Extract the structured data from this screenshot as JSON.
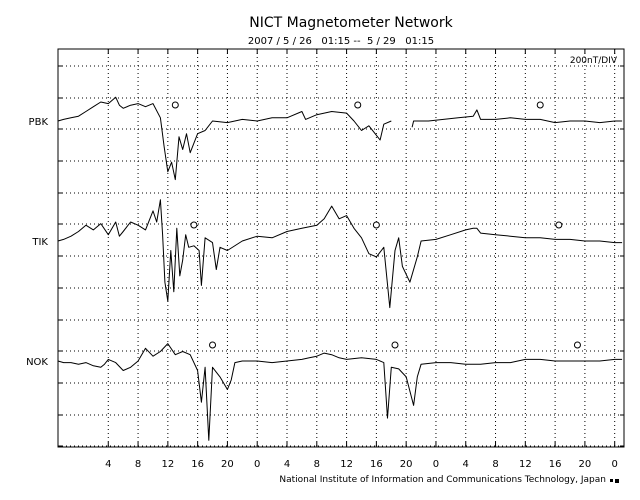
{
  "chart_data": {
    "type": "line",
    "title": "NICT Magnetometer Network",
    "subtitle": "2007 / 5 / 26   01:15 --  5 / 29   01:15",
    "scale_label": "200nT/DIV",
    "credit": "National Institute of Information and Communications Technology, Japan",
    "x_tick_labels": [
      "4",
      "8",
      "12",
      "16",
      "20",
      "0",
      "4",
      "8",
      "12",
      "16",
      "20",
      "0",
      "4",
      "8",
      "12",
      "16",
      "20",
      "0"
    ],
    "x_tick_hours": [
      4,
      8,
      12,
      16,
      20,
      24,
      28,
      32,
      36,
      40,
      44,
      48,
      52,
      56,
      60,
      64,
      68,
      72
    ],
    "x_range_hours": [
      -2.75,
      73.25
    ],
    "grid": true,
    "stations": [
      {
        "name": "PBK",
        "circle_markers_hours": [
          13.0,
          37.5,
          62.0
        ],
        "values": [
          [
            -2.75,
            0
          ],
          [
            -2,
            0.05
          ],
          [
            -1,
            0.1
          ],
          [
            0,
            0.15
          ],
          [
            1,
            0.3
          ],
          [
            2,
            0.45
          ],
          [
            3,
            0.6
          ],
          [
            4,
            0.55
          ],
          [
            5,
            0.75
          ],
          [
            5.5,
            0.5
          ],
          [
            6,
            0.4
          ],
          [
            7,
            0.5
          ],
          [
            8,
            0.55
          ],
          [
            9,
            0.45
          ],
          [
            10,
            0.55
          ],
          [
            11,
            0.1
          ],
          [
            11.5,
            -0.8
          ],
          [
            12,
            -1.6
          ],
          [
            12.5,
            -1.3
          ],
          [
            13,
            -1.85
          ],
          [
            13.5,
            -0.5
          ],
          [
            14,
            -0.9
          ],
          [
            14.5,
            -0.4
          ],
          [
            15,
            -1.0
          ],
          [
            16,
            -0.4
          ],
          [
            17,
            -0.3
          ],
          [
            18,
            0.0
          ],
          [
            20,
            -0.05
          ],
          [
            22,
            0.05
          ],
          [
            24,
            0.0
          ],
          [
            26,
            0.1
          ],
          [
            28,
            0.1
          ],
          [
            30,
            0.3
          ],
          [
            30.5,
            0.05
          ],
          [
            32,
            0.2
          ],
          [
            34,
            0.3
          ],
          [
            36,
            0.25
          ],
          [
            37,
            0.0
          ],
          [
            38,
            -0.3
          ],
          [
            39,
            -0.15
          ],
          [
            40,
            -0.45
          ],
          [
            40.5,
            -0.6
          ],
          [
            41,
            -0.1
          ],
          [
            42,
            0.0
          ],
          [
            42.3,
            null
          ],
          [
            44.5,
            null
          ],
          [
            44.8,
            -0.2
          ],
          [
            45,
            0.0
          ],
          [
            47,
            0.0
          ],
          [
            49,
            0.05
          ],
          [
            51,
            0.1
          ],
          [
            53,
            0.15
          ],
          [
            53.5,
            0.35
          ],
          [
            54,
            0.05
          ],
          [
            56,
            0.05
          ],
          [
            58,
            0.1
          ],
          [
            60,
            0.05
          ],
          [
            62,
            0.05
          ],
          [
            64,
            -0.05
          ],
          [
            66,
            0.0
          ],
          [
            68,
            0.0
          ],
          [
            70,
            -0.05
          ],
          [
            72,
            0.0
          ],
          [
            73,
            0.0
          ]
        ]
      },
      {
        "name": "TIK",
        "circle_markers_hours": [
          15.5,
          40.0,
          64.5
        ],
        "values": [
          [
            -2.75,
            0
          ],
          [
            -2,
            0.05
          ],
          [
            -1,
            0.15
          ],
          [
            0,
            0.3
          ],
          [
            1,
            0.5
          ],
          [
            2,
            0.35
          ],
          [
            3,
            0.55
          ],
          [
            4,
            0.2
          ],
          [
            5,
            0.6
          ],
          [
            5.5,
            0.15
          ],
          [
            6,
            0.3
          ],
          [
            7,
            0.6
          ],
          [
            8,
            0.5
          ],
          [
            9,
            0.35
          ],
          [
            10,
            0.95
          ],
          [
            10.5,
            0.6
          ],
          [
            11,
            1.3
          ],
          [
            11.3,
            0.2
          ],
          [
            11.6,
            -1.3
          ],
          [
            12,
            -1.9
          ],
          [
            12.4,
            -0.3
          ],
          [
            12.8,
            -1.6
          ],
          [
            13.2,
            0.4
          ],
          [
            13.6,
            -1.1
          ],
          [
            14,
            -0.6
          ],
          [
            14.4,
            0.2
          ],
          [
            14.8,
            -0.2
          ],
          [
            15.5,
            -0.15
          ],
          [
            16.2,
            -0.3
          ],
          [
            16.5,
            -1.4
          ],
          [
            17,
            0.1
          ],
          [
            18,
            -0.05
          ],
          [
            18.5,
            -0.9
          ],
          [
            19,
            -0.2
          ],
          [
            20,
            -0.3
          ],
          [
            22,
            0.0
          ],
          [
            24,
            0.15
          ],
          [
            26,
            0.1
          ],
          [
            28,
            0.3
          ],
          [
            30,
            0.4
          ],
          [
            32,
            0.5
          ],
          [
            33,
            0.7
          ],
          [
            34,
            1.1
          ],
          [
            35,
            0.7
          ],
          [
            36,
            0.8
          ],
          [
            37,
            0.4
          ],
          [
            38,
            0.1
          ],
          [
            39,
            -0.4
          ],
          [
            40,
            -0.5
          ],
          [
            41,
            -0.2
          ],
          [
            41.8,
            -2.1
          ],
          [
            42.5,
            -0.3
          ],
          [
            43,
            0.1
          ],
          [
            43.5,
            -0.8
          ],
          [
            44.5,
            -1.3
          ],
          [
            45.5,
            -0.5
          ],
          [
            46,
            0.0
          ],
          [
            48,
            0.05
          ],
          [
            50,
            0.2
          ],
          [
            52,
            0.35
          ],
          [
            53,
            0.4
          ],
          [
            53.5,
            0.4
          ],
          [
            54,
            0.25
          ],
          [
            56,
            0.2
          ],
          [
            58,
            0.15
          ],
          [
            60,
            0.1
          ],
          [
            62,
            0.1
          ],
          [
            64,
            0.05
          ],
          [
            66,
            0.05
          ],
          [
            68,
            0.0
          ],
          [
            70,
            0.0
          ],
          [
            72,
            -0.05
          ],
          [
            73,
            -0.05
          ]
        ]
      },
      {
        "name": "NOK",
        "circle_markers_hours": [
          18.0,
          42.5,
          67.0
        ],
        "values": [
          [
            -2.75,
            0
          ],
          [
            -2,
            -0.05
          ],
          [
            -1,
            -0.05
          ],
          [
            0,
            -0.1
          ],
          [
            1,
            -0.05
          ],
          [
            2,
            -0.15
          ],
          [
            3,
            -0.2
          ],
          [
            3.5,
            -0.1
          ],
          [
            4,
            0.05
          ],
          [
            5,
            -0.05
          ],
          [
            6,
            -0.3
          ],
          [
            7,
            -0.2
          ],
          [
            8,
            0.0
          ],
          [
            9,
            0.4
          ],
          [
            10,
            0.15
          ],
          [
            11,
            0.3
          ],
          [
            12,
            0.55
          ],
          [
            13,
            0.2
          ],
          [
            14,
            0.3
          ],
          [
            15,
            0.2
          ],
          [
            16,
            -0.3
          ],
          [
            16.5,
            -1.3
          ],
          [
            17,
            -0.2
          ],
          [
            17.5,
            -2.5
          ],
          [
            18,
            -0.2
          ],
          [
            19,
            -0.5
          ],
          [
            20,
            -0.9
          ],
          [
            20.5,
            -0.6
          ],
          [
            21,
            -0.05
          ],
          [
            22,
            0.0
          ],
          [
            24,
            0.0
          ],
          [
            26,
            -0.05
          ],
          [
            28,
            0.0
          ],
          [
            30,
            0.05
          ],
          [
            31,
            0.1
          ],
          [
            32,
            0.15
          ],
          [
            33,
            0.25
          ],
          [
            34,
            0.2
          ],
          [
            35,
            0.1
          ],
          [
            36,
            0.05
          ],
          [
            38,
            0.1
          ],
          [
            40,
            0.05
          ],
          [
            41,
            -0.05
          ],
          [
            41.5,
            -1.8
          ],
          [
            42,
            -0.2
          ],
          [
            43,
            -0.25
          ],
          [
            44,
            -0.5
          ],
          [
            45,
            -1.4
          ],
          [
            45.5,
            -0.5
          ],
          [
            46,
            -0.1
          ],
          [
            48,
            -0.05
          ],
          [
            50,
            -0.05
          ],
          [
            52,
            -0.1
          ],
          [
            54,
            -0.1
          ],
          [
            56,
            -0.05
          ],
          [
            58,
            -0.05
          ],
          [
            60,
            0.05
          ],
          [
            62,
            0.05
          ],
          [
            64,
            0.0
          ],
          [
            66,
            0.0
          ],
          [
            68,
            0.0
          ],
          [
            70,
            0.0
          ],
          [
            72,
            0.05
          ],
          [
            73,
            0.05
          ]
        ]
      }
    ]
  }
}
